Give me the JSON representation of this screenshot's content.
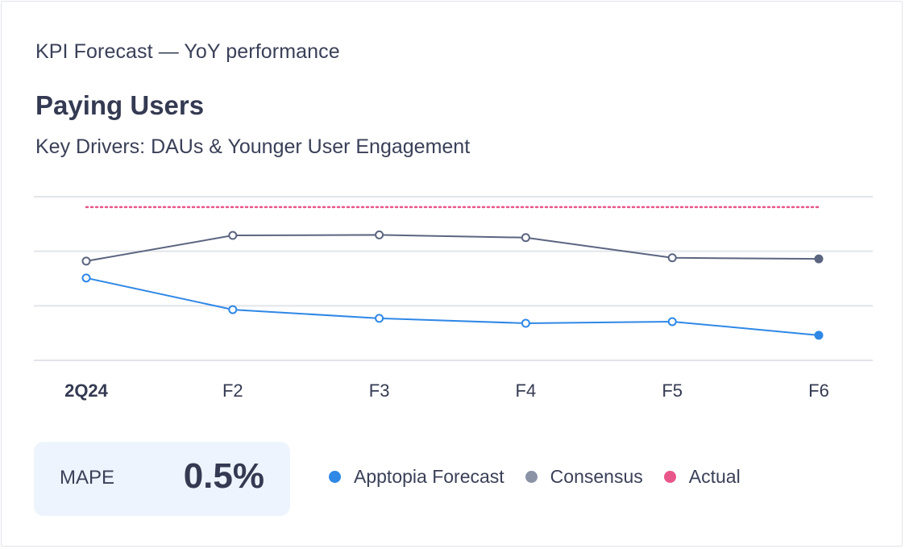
{
  "header": {
    "kicker": "KPI Forecast — YoY performance",
    "title": "Paying Users",
    "subtitle": "Key Drivers: DAUs & Younger User Engagement"
  },
  "colors": {
    "apptopia": "#2f88e6",
    "consensus": "#5b6580",
    "consensus_legend": "#8a93a6",
    "actual": "#e8568a",
    "grid": "#e1e4ea"
  },
  "chart_data": {
    "type": "line",
    "title": "Paying Users",
    "xlabel": "",
    "ylabel": "",
    "categories": [
      "2Q24",
      "F2",
      "F3",
      "F4",
      "F5",
      "F6"
    ],
    "ylim": [
      0,
      3
    ],
    "grid": true,
    "y_gridlines": [
      0,
      1,
      2,
      3
    ],
    "y_tick_labels_shown": false,
    "note": "No y-axis labels shown; values are relative, estimated on gridline scale (0–3).",
    "series": [
      {
        "name": "Apptopia Forecast",
        "key": "apptopia",
        "values": [
          1.51,
          0.93,
          0.77,
          0.68,
          0.71,
          0.46
        ],
        "last_point_filled": true
      },
      {
        "name": "Consensus",
        "key": "consensus",
        "values": [
          1.82,
          2.29,
          2.3,
          2.25,
          1.88,
          1.86
        ],
        "last_point_filled": true
      },
      {
        "name": "Actual",
        "key": "actual",
        "values": [
          2.81,
          2.81,
          2.81,
          2.81,
          2.81,
          2.81
        ],
        "style": "dotted"
      }
    ],
    "legend": {
      "placement": "bottom",
      "entries": [
        "Apptopia Forecast",
        "Consensus",
        "Actual"
      ]
    }
  },
  "metric": {
    "label": "MAPE",
    "value": "0.5%"
  }
}
